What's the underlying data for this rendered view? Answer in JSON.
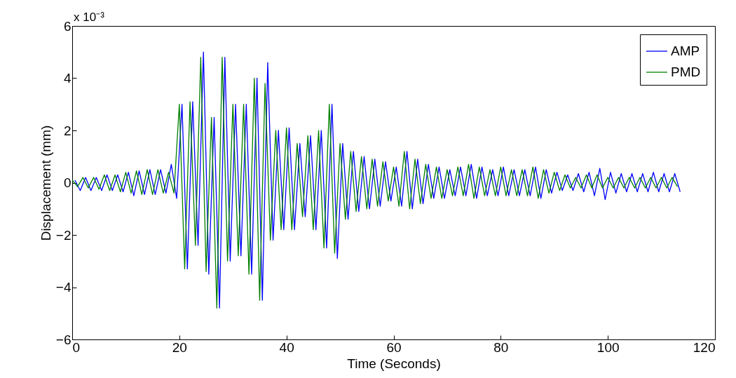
{
  "chart_data": {
    "type": "line",
    "xlabel": "Time (Seconds)",
    "ylabel": "Displacement (mm)",
    "annotations": [
      "x 10⁻³"
    ],
    "xlim": [
      0,
      120
    ],
    "xticks": [
      0,
      20,
      40,
      60,
      80,
      100,
      120
    ],
    "ylim": [
      -6,
      6
    ],
    "yticks": [
      -6,
      -4,
      -2,
      0,
      2,
      4,
      6
    ],
    "grid": false,
    "legend": "top right",
    "marker": "none",
    "line_style": "solid",
    "x": [
      0,
      1,
      2,
      3,
      4,
      5,
      6,
      7,
      8,
      9,
      10,
      11,
      12,
      13,
      14,
      15,
      16,
      17,
      18,
      19,
      20,
      21,
      22,
      23,
      24,
      25,
      26,
      27,
      28,
      29,
      30,
      31,
      32,
      33,
      34,
      35,
      36,
      37,
      38,
      39,
      40,
      41,
      42,
      43,
      44,
      45,
      46,
      47,
      48,
      49,
      50,
      51,
      52,
      53,
      54,
      55,
      56,
      57,
      58,
      59,
      60,
      61,
      62,
      63,
      64,
      65,
      66,
      67,
      68,
      69,
      70,
      71,
      72,
      73,
      74,
      75,
      76,
      77,
      78,
      79,
      80,
      81,
      82,
      83,
      84,
      85,
      86,
      87,
      88,
      89,
      90,
      91,
      92,
      93,
      94,
      95,
      96,
      97,
      98,
      99,
      100,
      101,
      102,
      103,
      104,
      105,
      106,
      107,
      108,
      109,
      110,
      111,
      112,
      113
    ],
    "series": [
      {
        "name": "AMP",
        "color": "#0000ff",
        "x": [
          0.5,
          1.5,
          2.5,
          3.5,
          4.5,
          5.5,
          6.5,
          7.5,
          8.5,
          9.5,
          10.5,
          11.5,
          12.5,
          13.5,
          14.5,
          15.5,
          16.5,
          17.5,
          18.5,
          19.5,
          20.5,
          21.5,
          22.5,
          23.5,
          24.5,
          25.5,
          26.5,
          27.5,
          28.5,
          29.5,
          30.5,
          31.5,
          32.5,
          33.5,
          34.5,
          35.5,
          36.5,
          37.5,
          38.5,
          39.5,
          40.5,
          41.5,
          42.5,
          43.5,
          44.5,
          45.5,
          46.5,
          47.5,
          48.5,
          49.5,
          50.5,
          51.5,
          52.5,
          53.5,
          54.5,
          55.5,
          56.5,
          57.5,
          58.5,
          59.5,
          60.5,
          61.5,
          62.5,
          63.5,
          64.5,
          65.5,
          66.5,
          67.5,
          68.5,
          69.5,
          70.5,
          71.5,
          72.5,
          73.5,
          74.5,
          75.5,
          76.5,
          77.5,
          78.5,
          79.5,
          80.5,
          81.5,
          82.5,
          83.5,
          84.5,
          85.5,
          86.5,
          87.5,
          88.5,
          89.5,
          90.5,
          91.5,
          92.5,
          93.5,
          94.5,
          95.5,
          96.5,
          97.5,
          98.5,
          99.5,
          100.5,
          101.5,
          102.5,
          103.5,
          104.5,
          105.5,
          106.5,
          107.5,
          108.5,
          109.5,
          110.5,
          111.5,
          112.5,
          113.5
        ],
        "values": [
          0.1,
          -0.3,
          0.2,
          -0.3,
          0.2,
          -0.3,
          0.3,
          -0.3,
          0.3,
          -0.35,
          0.4,
          -0.5,
          0.45,
          -0.45,
          0.5,
          -0.45,
          0.5,
          -0.4,
          0.7,
          -0.6,
          3.0,
          -3.3,
          3.1,
          -2.4,
          5.0,
          -3.5,
          2.5,
          -4.8,
          4.8,
          -3.0,
          3.0,
          -2.8,
          3.0,
          -3.5,
          4.0,
          -4.5,
          4.6,
          -2.2,
          2.0,
          -1.8,
          2.1,
          -1.8,
          1.5,
          -1.3,
          1.8,
          -1.8,
          2.0,
          -2.5,
          3.0,
          -2.9,
          1.5,
          -1.4,
          1.2,
          -1.1,
          1.0,
          -1.0,
          0.9,
          -0.9,
          0.8,
          -0.7,
          0.6,
          -0.9,
          1.2,
          -1.0,
          0.9,
          -0.8,
          0.7,
          -0.6,
          0.6,
          -0.6,
          0.5,
          -0.5,
          0.6,
          -0.5,
          0.7,
          -0.6,
          0.6,
          -0.5,
          0.5,
          -0.5,
          0.6,
          -0.5,
          0.5,
          -0.5,
          0.5,
          -0.5,
          0.6,
          -0.6,
          0.5,
          -0.4,
          0.4,
          -0.3,
          0.3,
          -0.3,
          0.35,
          -0.35,
          0.4,
          -0.5,
          0.55,
          -0.65,
          0.4,
          -0.4,
          0.35,
          -0.35,
          0.35,
          -0.35,
          0.35,
          -0.35,
          0.4,
          -0.35,
          0.35,
          -0.35,
          0.35,
          -0.35
        ]
      },
      {
        "name": "PMD",
        "color": "#008000",
        "values": [
          0.1,
          -0.15,
          0.2,
          -0.2,
          0.2,
          -0.25,
          0.3,
          -0.3,
          0.3,
          -0.35,
          0.4,
          -0.4,
          0.45,
          -0.45,
          0.5,
          -0.45,
          0.5,
          -0.4,
          0.4,
          -0.4,
          3.0,
          -3.3,
          3.1,
          -2.4,
          4.8,
          -3.4,
          2.5,
          -4.8,
          4.8,
          -3.0,
          3.0,
          -2.8,
          3.0,
          -3.5,
          4.0,
          -4.5,
          3.8,
          -2.2,
          2.0,
          -1.8,
          2.1,
          -1.8,
          1.5,
          -1.3,
          1.8,
          -1.8,
          2.0,
          -2.5,
          3.0,
          -2.7,
          1.5,
          -1.4,
          1.2,
          -1.1,
          1.0,
          -1.0,
          0.9,
          -0.9,
          0.8,
          -0.7,
          0.6,
          -0.9,
          1.2,
          -1.0,
          0.9,
          -0.8,
          0.7,
          -0.6,
          0.6,
          -0.6,
          0.5,
          -0.5,
          0.6,
          -0.5,
          0.7,
          -0.6,
          0.6,
          -0.5,
          0.5,
          -0.5,
          0.6,
          -0.5,
          0.5,
          -0.5,
          0.5,
          -0.5,
          0.6,
          -0.6,
          0.5,
          -0.4,
          0.4,
          -0.3,
          0.3,
          -0.2,
          0.2,
          -0.2,
          0.3,
          -0.2,
          0.3,
          -0.2,
          0.2,
          -0.2,
          0.2,
          -0.2,
          0.2,
          -0.2,
          0.2,
          -0.2,
          0.2,
          -0.2,
          0.2,
          -0.2,
          0.2,
          -0.15
        ]
      }
    ]
  }
}
